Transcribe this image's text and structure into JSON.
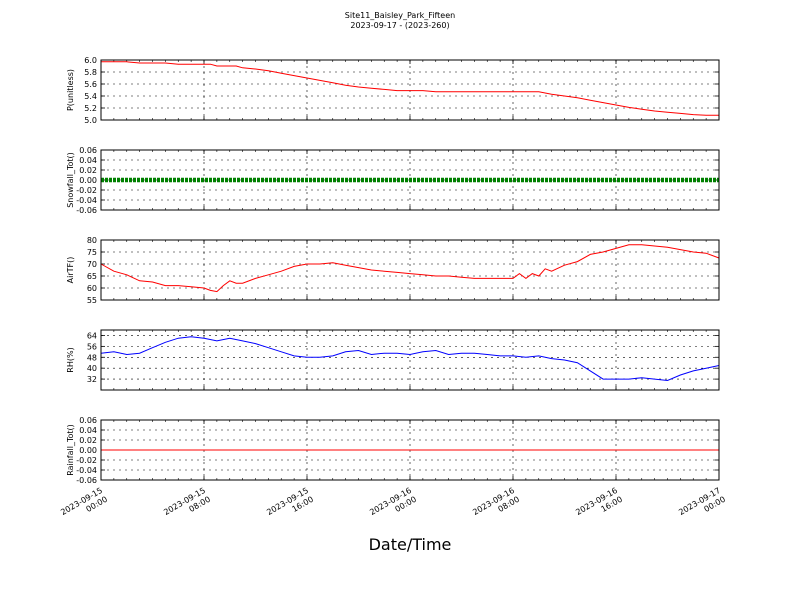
{
  "title": "Site11_Baisley_Park_Fifteen",
  "subtitle": "2023-09-17 - (2023-260)",
  "chart_data": {
    "type": "line",
    "xlabel": "Date/Time",
    "grid": true,
    "xlim": [
      "2023-09-15 00:00",
      "2023-09-17 00:00"
    ],
    "xticks": [
      {
        "value": "2023-09-15 00:00",
        "line1": "2023-09-15",
        "line2": "00:00"
      },
      {
        "value": "2023-09-15 08:00",
        "line1": "2023-09-15",
        "line2": "08:00"
      },
      {
        "value": "2023-09-15 16:00",
        "line1": "2023-09-15",
        "line2": "16:00"
      },
      {
        "value": "2023-09-16 00:00",
        "line1": "2023-09-16",
        "line2": "00:00"
      },
      {
        "value": "2023-09-16 08:00",
        "line1": "2023-09-16",
        "line2": "08:00"
      },
      {
        "value": "2023-09-16 16:00",
        "line1": "2023-09-16",
        "line2": "16:00"
      },
      {
        "value": "2023-09-17 00:00",
        "line1": "2023-09-17",
        "line2": "00:00"
      }
    ],
    "panels": [
      {
        "ylabel": "P(unitless)",
        "ylim": [
          5.0,
          6.0
        ],
        "yticks": [
          5.0,
          5.2,
          5.4,
          5.6,
          5.8,
          6.0
        ],
        "tick_decimals": 1,
        "color": "#ff0000",
        "style": "line",
        "x": [
          "2023-09-15 00:00",
          "2023-09-15 02:00",
          "2023-09-15 03:00",
          "2023-09-15 05:00",
          "2023-09-15 06:00",
          "2023-09-15 08:30",
          "2023-09-15 09:00",
          "2023-09-15 10:30",
          "2023-09-15 11:00",
          "2023-09-15 12:00",
          "2023-09-15 13:00",
          "2023-09-15 14:00",
          "2023-09-15 15:00",
          "2023-09-15 16:00",
          "2023-09-15 17:00",
          "2023-09-15 18:00",
          "2023-09-15 19:00",
          "2023-09-15 20:00",
          "2023-09-15 21:00",
          "2023-09-15 22:00",
          "2023-09-15 23:00",
          "2023-09-16 01:00",
          "2023-09-16 02:00",
          "2023-09-16 04:00",
          "2023-09-16 08:00",
          "2023-09-16 10:00",
          "2023-09-16 11:00",
          "2023-09-16 12:00",
          "2023-09-16 13:00",
          "2023-09-16 14:00",
          "2023-09-16 15:00",
          "2023-09-16 16:00",
          "2023-09-16 17:00",
          "2023-09-16 18:00",
          "2023-09-16 19:00",
          "2023-09-16 20:00",
          "2023-09-16 21:00",
          "2023-09-16 22:00",
          "2023-09-16 23:00",
          "2023-09-17 00:00"
        ],
        "values": [
          5.97,
          5.97,
          5.95,
          5.95,
          5.93,
          5.93,
          5.9,
          5.9,
          5.87,
          5.85,
          5.82,
          5.78,
          5.74,
          5.7,
          5.66,
          5.62,
          5.58,
          5.55,
          5.53,
          5.51,
          5.49,
          5.49,
          5.47,
          5.47,
          5.47,
          5.47,
          5.43,
          5.4,
          5.37,
          5.33,
          5.29,
          5.25,
          5.21,
          5.18,
          5.15,
          5.13,
          5.11,
          5.09,
          5.08,
          5.08
        ]
      },
      {
        "ylabel": "Snowfall_Tot()",
        "ylim": [
          -0.06,
          0.06
        ],
        "yticks": [
          -0.06,
          -0.04,
          -0.02,
          0.0,
          0.02,
          0.04,
          0.06
        ],
        "tick_decimals": 2,
        "color": "#008000",
        "style": "dots",
        "x": [
          "2023-09-15 00:00",
          "2023-09-17 00:00"
        ],
        "values": [
          0.0,
          0.0
        ]
      },
      {
        "ylabel": "AirTF()",
        "ylim": [
          55,
          80
        ],
        "yticks": [
          55,
          60,
          65,
          70,
          75,
          80
        ],
        "tick_decimals": 0,
        "color": "#ff0000",
        "style": "line",
        "x": [
          "2023-09-15 00:00",
          "2023-09-15 01:00",
          "2023-09-15 02:00",
          "2023-09-15 03:00",
          "2023-09-15 04:00",
          "2023-09-15 05:00",
          "2023-09-15 06:00",
          "2023-09-15 07:00",
          "2023-09-15 08:00",
          "2023-09-15 08:30",
          "2023-09-15 09:00",
          "2023-09-15 09:30",
          "2023-09-15 10:00",
          "2023-09-15 10:30",
          "2023-09-15 11:00",
          "2023-09-15 12:00",
          "2023-09-15 13:00",
          "2023-09-15 14:00",
          "2023-09-15 15:00",
          "2023-09-15 16:00",
          "2023-09-15 17:00",
          "2023-09-15 18:00",
          "2023-09-15 19:00",
          "2023-09-15 20:00",
          "2023-09-15 21:00",
          "2023-09-15 22:00",
          "2023-09-15 23:00",
          "2023-09-16 00:00",
          "2023-09-16 01:00",
          "2023-09-16 02:00",
          "2023-09-16 03:00",
          "2023-09-16 04:00",
          "2023-09-16 05:00",
          "2023-09-16 06:00",
          "2023-09-16 07:00",
          "2023-09-16 08:00",
          "2023-09-16 08:30",
          "2023-09-16 09:00",
          "2023-09-16 09:30",
          "2023-09-16 10:00",
          "2023-09-16 10:30",
          "2023-09-16 11:00",
          "2023-09-16 12:00",
          "2023-09-16 13:00",
          "2023-09-16 14:00",
          "2023-09-16 15:00",
          "2023-09-16 16:00",
          "2023-09-16 17:00",
          "2023-09-16 18:00",
          "2023-09-16 19:00",
          "2023-09-16 20:00",
          "2023-09-16 21:00",
          "2023-09-16 22:00",
          "2023-09-16 23:00",
          "2023-09-17 00:00"
        ],
        "values": [
          70,
          67,
          65.5,
          63,
          62.5,
          61,
          61,
          60.5,
          60,
          59,
          58.5,
          61,
          63,
          62,
          62,
          64,
          65.5,
          67,
          69,
          70,
          70,
          70.5,
          69.5,
          68.5,
          67.5,
          67,
          66.5,
          66,
          65.5,
          65,
          65,
          64.5,
          64,
          64,
          64,
          64,
          66,
          64,
          66,
          65,
          68,
          67,
          69.5,
          71,
          74,
          75,
          76.5,
          78,
          78,
          77.5,
          77,
          76,
          75,
          74.5,
          72.5
        ]
      },
      {
        "ylabel": "RH(%)",
        "ylim": [
          24,
          68
        ],
        "yticks": [
          32,
          40,
          48,
          56,
          64
        ],
        "tick_decimals": 0,
        "color": "#0000ff",
        "style": "line",
        "x": [
          "2023-09-15 00:00",
          "2023-09-15 01:00",
          "2023-09-15 02:00",
          "2023-09-15 03:00",
          "2023-09-15 04:00",
          "2023-09-15 05:00",
          "2023-09-15 06:00",
          "2023-09-15 07:00",
          "2023-09-15 08:00",
          "2023-09-15 09:00",
          "2023-09-15 10:00",
          "2023-09-15 11:00",
          "2023-09-15 12:00",
          "2023-09-15 13:00",
          "2023-09-15 14:00",
          "2023-09-15 15:00",
          "2023-09-15 16:00",
          "2023-09-15 17:00",
          "2023-09-15 18:00",
          "2023-09-15 19:00",
          "2023-09-15 20:00",
          "2023-09-15 21:00",
          "2023-09-15 22:00",
          "2023-09-15 23:00",
          "2023-09-16 00:00",
          "2023-09-16 01:00",
          "2023-09-16 02:00",
          "2023-09-16 03:00",
          "2023-09-16 04:00",
          "2023-09-16 05:00",
          "2023-09-16 06:00",
          "2023-09-16 07:00",
          "2023-09-16 08:00",
          "2023-09-16 09:00",
          "2023-09-16 10:00",
          "2023-09-16 11:00",
          "2023-09-16 12:00",
          "2023-09-16 13:00",
          "2023-09-16 14:00",
          "2023-09-16 15:00",
          "2023-09-16 16:00",
          "2023-09-16 17:00",
          "2023-09-16 18:00",
          "2023-09-16 19:00",
          "2023-09-16 20:00",
          "2023-09-16 21:00",
          "2023-09-16 22:00",
          "2023-09-16 23:00",
          "2023-09-17 00:00"
        ],
        "values": [
          51,
          52,
          50,
          51,
          55,
          59,
          62,
          63,
          62,
          60,
          62,
          60,
          58,
          55,
          52,
          49,
          48,
          48,
          49,
          52,
          53,
          50,
          51,
          51,
          50,
          52,
          53,
          50,
          51,
          51,
          50,
          49,
          49,
          48,
          49,
          47,
          46,
          44,
          38,
          32,
          32,
          32,
          33,
          32,
          31,
          35,
          38,
          40,
          42
        ]
      },
      {
        "ylabel": "Rainfall_Tot()",
        "ylim": [
          -0.06,
          0.06
        ],
        "yticks": [
          -0.06,
          -0.04,
          -0.02,
          0.0,
          0.02,
          0.04,
          0.06
        ],
        "tick_decimals": 2,
        "color": "#ff0000",
        "style": "line",
        "x": [
          "2023-09-15 00:00",
          "2023-09-17 00:00"
        ],
        "values": [
          0.0,
          0.0
        ]
      }
    ]
  }
}
